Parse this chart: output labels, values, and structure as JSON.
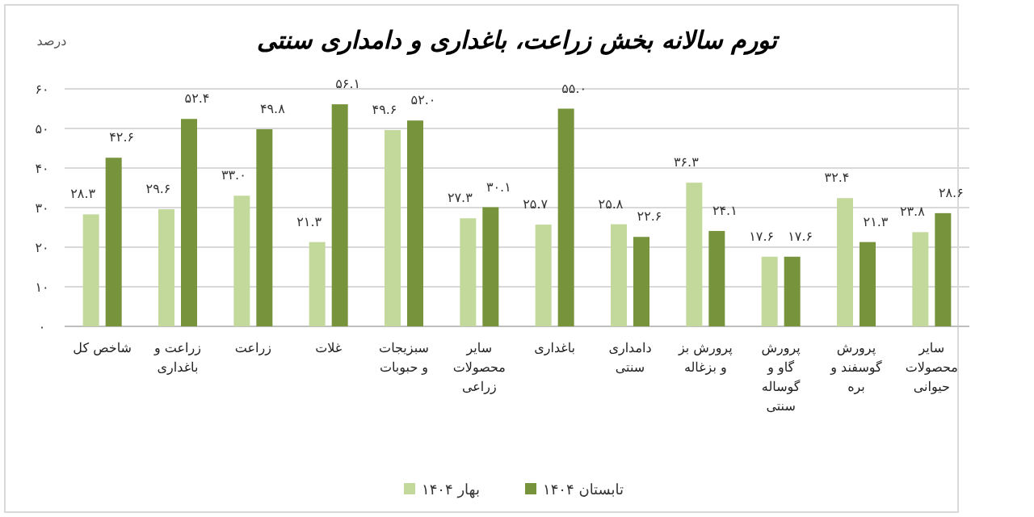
{
  "chart_data": {
    "type": "bar",
    "title": "تورم سالانه بخش زراعت، باغداری و دامداری سنتی",
    "ylabel": "درصد",
    "categories": [
      "شاخص کل",
      "زراعت و باغداری",
      "زراعت",
      "غلات",
      "سبزیجات و حبوبات",
      "سایر محصولات زراعی",
      "باغداری",
      "دامداری سنتی",
      "پرورش بز و بزغاله",
      "پرورش گاو و گوساله سنتی",
      "پرورش گوسفند و بره",
      "سایر محصولات حیوانی"
    ],
    "series": [
      {
        "name": "بهار ۱۴۰۴",
        "color": "#c3d99b",
        "values": [
          28.3,
          29.6,
          33.0,
          21.3,
          49.6,
          27.3,
          25.7,
          25.8,
          36.3,
          17.6,
          32.4,
          23.8
        ],
        "value_labels": [
          "۲۸.۳",
          "۲۹.۶",
          "۳۳.۰",
          "۲۱.۳",
          "۴۹.۶",
          "۲۷.۳",
          "۲۵.۷",
          "۲۵.۸",
          "۳۶.۳",
          "۱۷.۶",
          "۳۲.۴",
          "۲۳.۸"
        ]
      },
      {
        "name": "تابستان ۱۴۰۴",
        "color": "#77933c",
        "values": [
          42.6,
          52.4,
          49.8,
          56.1,
          52.0,
          30.1,
          55.0,
          22.6,
          24.1,
          17.6,
          21.3,
          28.6
        ],
        "value_labels": [
          "۴۲.۶",
          "۵۲.۴",
          "۴۹.۸",
          "۵۶.۱",
          "۵۲.۰",
          "۳۰.۱",
          "۵۵.۰",
          "۲۲.۶",
          "۲۴.۱",
          "۱۷.۶",
          "۲۱.۳",
          "۲۸.۶"
        ]
      }
    ],
    "ylim": [
      0,
      60
    ],
    "yticks": [
      {
        "value": 0,
        "label": "۰"
      },
      {
        "value": 10,
        "label": "۱۰"
      },
      {
        "value": 20,
        "label": "۲۰"
      },
      {
        "value": 30,
        "label": "۳۰"
      },
      {
        "value": 40,
        "label": "۴۰"
      },
      {
        "value": 50,
        "label": "۵۰"
      },
      {
        "value": 60,
        "label": "۶۰"
      }
    ],
    "grid": "y",
    "legend": "bottom"
  }
}
